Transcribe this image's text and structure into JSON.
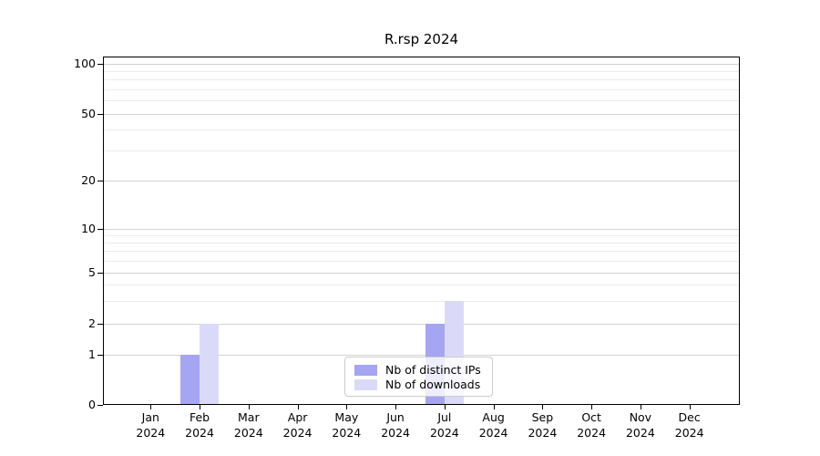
{
  "chart_data": {
    "type": "bar",
    "title": "R.rsp 2024",
    "categories": [
      "Jan",
      "Feb",
      "Mar",
      "Apr",
      "May",
      "Jun",
      "Jul",
      "Aug",
      "Sep",
      "Oct",
      "Nov",
      "Dec"
    ],
    "x_tick_year": "2024",
    "series": [
      {
        "name": "Nb of distinct IPs",
        "color": "#a5a5f2",
        "values": [
          0,
          1,
          0,
          0,
          0,
          0,
          2,
          0,
          0,
          0,
          0,
          0
        ]
      },
      {
        "name": "Nb of downloads",
        "color": "#dadaf8",
        "values": [
          0,
          2,
          0,
          0,
          0,
          0,
          3,
          0,
          0,
          0,
          0,
          0
        ]
      }
    ],
    "y_scale": "log-like",
    "y_ticks": [
      0,
      1,
      2,
      5,
      10,
      20,
      50,
      100
    ],
    "y_minor_gridlines": [
      3,
      4,
      6,
      7,
      8,
      9,
      30,
      40,
      60,
      70,
      80,
      90
    ],
    "ylim": [
      0,
      110
    ],
    "grid": true,
    "legend_position": "bottom-center"
  }
}
